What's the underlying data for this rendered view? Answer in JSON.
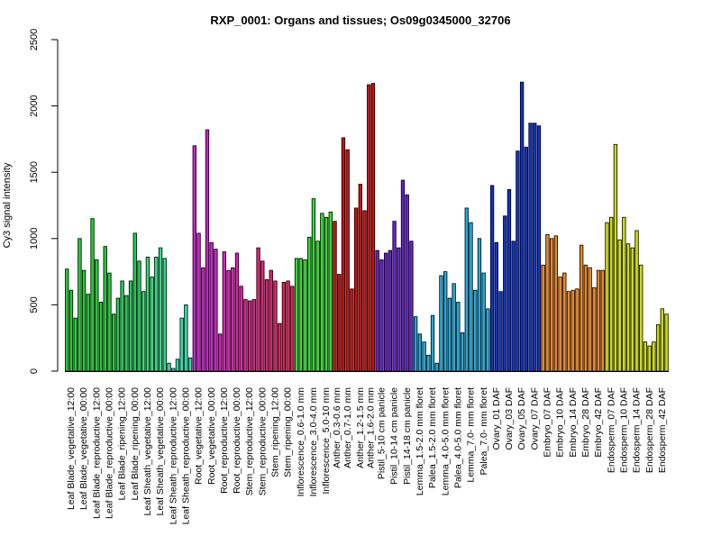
{
  "chart_data": {
    "type": "bar",
    "title": "RXP_0001: Organs and tissues; Os09g0345000_32706",
    "ylabel": "Cy3 signal intensity",
    "xlabel": "",
    "ylim": [
      0,
      2500
    ],
    "yticks": [
      0,
      500,
      1000,
      1500,
      2000,
      2500
    ],
    "grid": false,
    "legend": "none",
    "groups": [
      {
        "label": "Leaf Blade_vegetative_12:00",
        "color": "#22cc33",
        "values": [
          770,
          610,
          400
        ]
      },
      {
        "label": "Leaf Blade_vegetative_00:00",
        "color": "#22cc33",
        "values": [
          1000,
          760,
          580
        ]
      },
      {
        "label": "Leaf Blade_reproductive_12:00",
        "color": "#22cc33",
        "values": [
          1150,
          840,
          520
        ]
      },
      {
        "label": "Leaf Blade_reproductive_00:00",
        "color": "#22cc33",
        "values": [
          940,
          740,
          430
        ]
      },
      {
        "label": "Leaf Blade_ripening_12:00",
        "color": "#22cc55",
        "values": [
          550,
          680,
          570
        ]
      },
      {
        "label": "Leaf Blade_ripening_00:00",
        "color": "#22cc55",
        "values": [
          680,
          1040,
          830
        ]
      },
      {
        "label": "Leaf Sheath_vegetative_12:00",
        "color": "#33dd77",
        "values": [
          600,
          860,
          710
        ]
      },
      {
        "label": "Leaf Sheath_vegetative_00:00",
        "color": "#33dd88",
        "values": [
          860,
          930,
          850
        ]
      },
      {
        "label": "Leaf Sheath_reproductive_12:00",
        "color": "#33ddaa",
        "values": [
          60,
          20,
          90
        ]
      },
      {
        "label": "Leaf Sheath_reproductive_00:00",
        "color": "#33ddaa",
        "values": [
          400,
          500,
          100
        ]
      },
      {
        "label": "Root_vegetative_12:00",
        "color": "#cc22cc",
        "values": [
          1700,
          1040,
          780
        ]
      },
      {
        "label": "Root_vegetative_00:00",
        "color": "#cc22cc",
        "values": [
          1820,
          970,
          920
        ]
      },
      {
        "label": "Root_reproductive_12:00",
        "color": "#dd22bb",
        "values": [
          280,
          900,
          760
        ]
      },
      {
        "label": "Root_reproductive_00:00",
        "color": "#dd22aa",
        "values": [
          780,
          890,
          640
        ]
      },
      {
        "label": "Stem_reproductive_12:00",
        "color": "#dd2288",
        "values": [
          540,
          530,
          540
        ]
      },
      {
        "label": "Stem_reproductive_00:00",
        "color": "#dd2277",
        "values": [
          930,
          830,
          690
        ]
      },
      {
        "label": "Stem_ripening_12:00",
        "color": "#dd2266",
        "values": [
          760,
          680,
          360
        ]
      },
      {
        "label": "Stem_ripening_00:00",
        "color": "#dd2255",
        "values": [
          670,
          680,
          640
        ]
      },
      {
        "label": "Inflorescence_0.6-1.0 mm",
        "color": "#33dd33",
        "values": [
          850,
          850,
          840
        ]
      },
      {
        "label": "Inflorescence_3.0-4.0 mm",
        "color": "#33dd33",
        "values": [
          1010,
          1300,
          980
        ]
      },
      {
        "label": "Inflorescence_5.0-10 mm",
        "color": "#33dd33",
        "values": [
          1190,
          1160,
          1200
        ]
      },
      {
        "label": "Anther_0.3-0.6 mm",
        "color": "#cc1111",
        "values": [
          1130,
          730
        ]
      },
      {
        "label": "Anther_0.7-1.0 mm",
        "color": "#cc1111",
        "values": [
          1760,
          1670,
          620
        ]
      },
      {
        "label": "Anther_1.2-1.5 mm",
        "color": "#cc1111",
        "values": [
          1230,
          1410,
          1210
        ]
      },
      {
        "label": "Anther_1.6-2.0 mm",
        "color": "#cc1111",
        "values": [
          2160,
          2170
        ]
      },
      {
        "label": "Pistil_5-10 cm panicle",
        "color": "#6622cc",
        "values": [
          910,
          840,
          890
        ]
      },
      {
        "label": "Pistil_10-14 cm panicle",
        "color": "#6622cc",
        "values": [
          910,
          1130,
          930
        ]
      },
      {
        "label": "Pistil_14-18 cm panicle",
        "color": "#6622cc",
        "values": [
          1440,
          1330,
          980
        ]
      },
      {
        "label": "Lemma_1.5-2.0 mm floret",
        "color": "#22aadd",
        "values": [
          410,
          280,
          220
        ]
      },
      {
        "label": "Palea_1.5-2.0 mm floret",
        "color": "#22aadd",
        "values": [
          120,
          420,
          60
        ]
      },
      {
        "label": "Lemma_4.0-5.0 mm floret",
        "color": "#22aadd",
        "values": [
          720,
          750,
          550
        ]
      },
      {
        "label": "Palea_4.0-5.0 mm floret",
        "color": "#22aadd",
        "values": [
          660,
          520,
          290
        ]
      },
      {
        "label": "Lemma_7.0- mm floret",
        "color": "#22aadd",
        "values": [
          1230,
          1120,
          610
        ]
      },
      {
        "label": "Palea_7.0- mm floret",
        "color": "#22aadd",
        "values": [
          1000,
          740,
          470
        ]
      },
      {
        "label": "Ovary_01 DAF",
        "color": "#1133cc",
        "values": [
          1400,
          970,
          600
        ]
      },
      {
        "label": "Ovary_03 DAF",
        "color": "#1133cc",
        "values": [
          1170,
          1370,
          980
        ]
      },
      {
        "label": "Ovary_05 DAF",
        "color": "#1133cc",
        "values": [
          1660,
          2180,
          1690
        ]
      },
      {
        "label": "Ovary_07 DAF",
        "color": "#1133cc",
        "values": [
          1870,
          1870,
          1850
        ]
      },
      {
        "label": "Embryo_07 DAF",
        "color": "#ee8822",
        "values": [
          800,
          1030,
          1000
        ]
      },
      {
        "label": "Embryo_10 DAF",
        "color": "#ee8822",
        "values": [
          1020,
          710,
          740
        ]
      },
      {
        "label": "Embryo_14 DAF",
        "color": "#ee8822",
        "values": [
          600,
          610,
          620
        ]
      },
      {
        "label": "Embryo_28 DAF",
        "color": "#ee8822",
        "values": [
          950,
          800,
          780
        ]
      },
      {
        "label": "Embryo_42 DAF",
        "color": "#ee8822",
        "values": [
          630,
          760,
          760
        ]
      },
      {
        "label": "Endosperm_07 DAF",
        "color": "#ccdd11",
        "values": [
          1120,
          1160,
          1710
        ]
      },
      {
        "label": "Endosperm_10 DAF",
        "color": "#ccdd11",
        "values": [
          990,
          1160,
          960
        ]
      },
      {
        "label": "Endosperm_14 DAF",
        "color": "#ccdd11",
        "values": [
          930,
          1060,
          800
        ]
      },
      {
        "label": "Endosperm_28 DAF",
        "color": "#ccdd11",
        "values": [
          220,
          190,
          220
        ]
      },
      {
        "label": "Endosperm_42 DAF",
        "color": "#ccdd11",
        "values": [
          350,
          470,
          430
        ]
      }
    ]
  }
}
